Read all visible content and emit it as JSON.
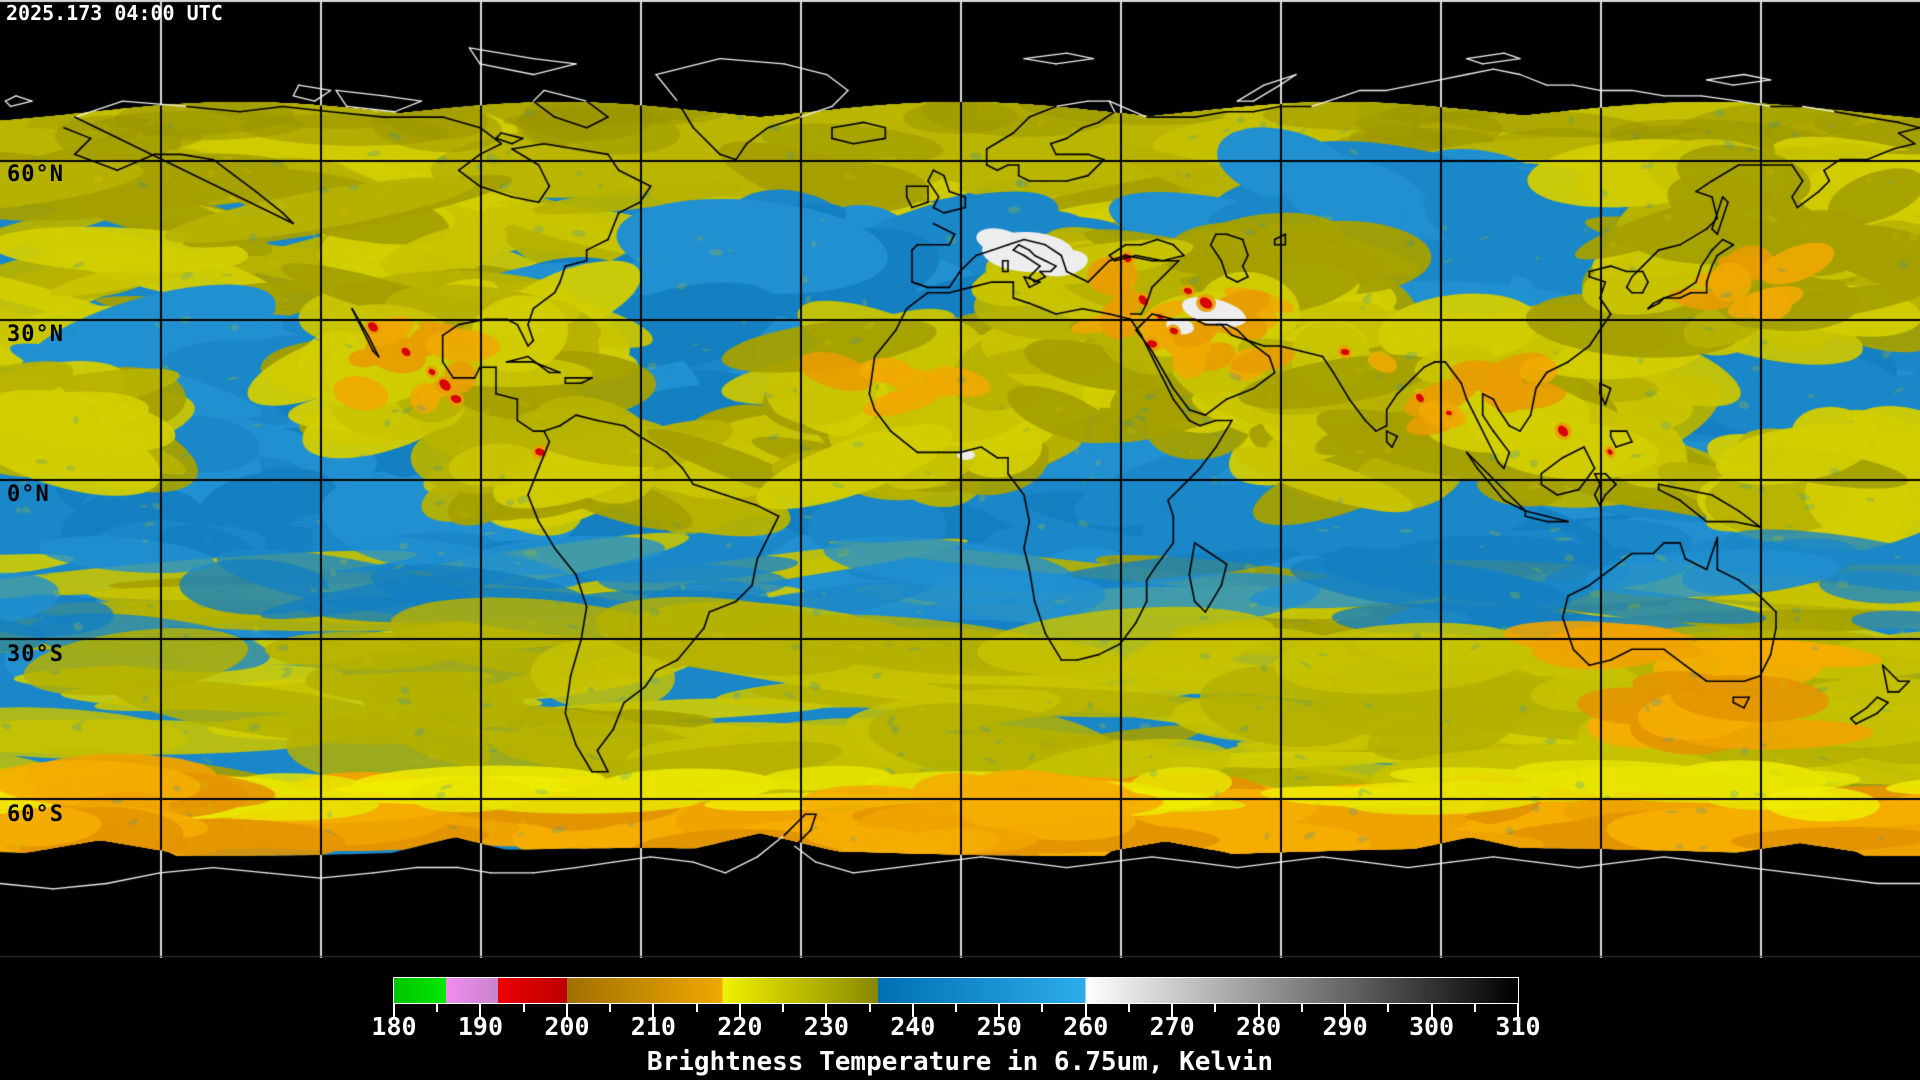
{
  "header": {
    "timestamp": "2025.173 04:00 UTC"
  },
  "map": {
    "latitude_labels": [
      {
        "text": "60°N"
      },
      {
        "text": "30°N"
      },
      {
        "text": "0°N"
      },
      {
        "text": "30°S"
      },
      {
        "text": "60°S"
      }
    ],
    "colors": {
      "background": "#000000",
      "moist_upper_troposphere_blue": "#1a87c8",
      "cloud_yellow": "#c8c400",
      "cloud_olive": "#a4a000",
      "cloud_orange": "#f0a400",
      "deep_convection_red": "#d80000",
      "dry_air_white": "#ededed",
      "coastline_on_data": "#000000",
      "coastline_on_void": "#f2f2f2",
      "gridline_on_data": "#000000",
      "gridline_on_void": "#dcdcdc"
    }
  },
  "colorbar": {
    "caption": "Brightness Temperature in 6.75um, Kelvin",
    "unit": "Kelvin",
    "min": 180,
    "max": 310,
    "tick_step_minor": 5,
    "tick_step_label": 10,
    "tick_labels": [
      "180",
      "190",
      "200",
      "210",
      "220",
      "230",
      "240",
      "250",
      "260",
      "270",
      "280",
      "290",
      "300",
      "310"
    ],
    "segments": [
      {
        "from": 180,
        "to": 186,
        "start": "#00c400",
        "end": "#00e800"
      },
      {
        "from": 186,
        "to": 192,
        "start": "#f08cf0",
        "end": "#c884cc"
      },
      {
        "from": 192,
        "to": 200,
        "start": "#ec0000",
        "end": "#bc0000"
      },
      {
        "from": 200,
        "to": 218,
        "start": "#a07000",
        "end": "#f0a800"
      },
      {
        "from": 218,
        "to": 236,
        "start": "#f0f000",
        "end": "#888800"
      },
      {
        "from": 236,
        "to": 260,
        "start": "#0070b4",
        "end": "#2cacec"
      },
      {
        "from": 260,
        "to": 310,
        "start": "#ffffff",
        "end": "#000000"
      }
    ]
  }
}
